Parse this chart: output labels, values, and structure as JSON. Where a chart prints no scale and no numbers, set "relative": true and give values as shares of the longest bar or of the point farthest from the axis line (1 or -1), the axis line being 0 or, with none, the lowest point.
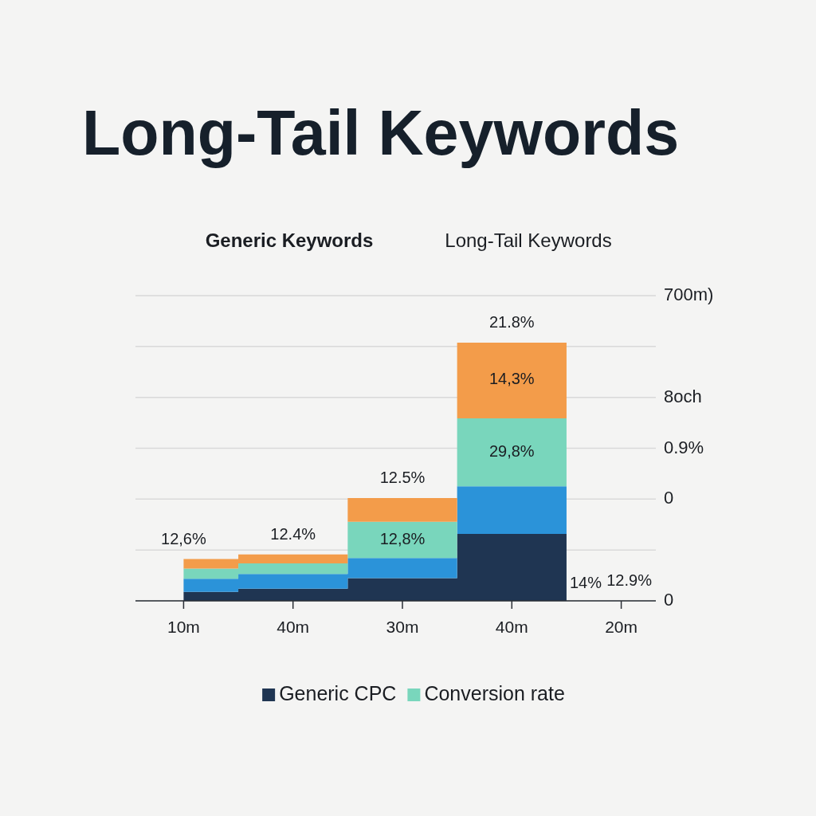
{
  "chart_data": {
    "type": "area",
    "stacked": true,
    "relative": true,
    "title": "Long-Tail Keywords",
    "categories": [
      "10m",
      "40m",
      "30m",
      "40m",
      "20m"
    ],
    "grid": "y",
    "legend": "bottom",
    "series": [
      {
        "name": "Generic CPC",
        "color": "#1f3552",
        "values": [
          0.035,
          0.047,
          0.088,
          0.259,
          0
        ]
      },
      {
        "color": "#2b93d9",
        "values": [
          0.051,
          0.057,
          0.078,
          0.185,
          0
        ]
      },
      {
        "name": "Conversion rate",
        "color": "#79d6bc",
        "values": [
          0.039,
          0.041,
          0.14,
          0.263,
          0
        ]
      },
      {
        "color": "#f39c4a",
        "values": [
          0.037,
          0.035,
          0.092,
          0.293,
          0
        ]
      }
    ],
    "annotations": [
      "Generic Keywords",
      "Long-Tail Keywords",
      "700m)",
      "8och",
      "0.9%",
      "0",
      "0",
      "12,6%",
      "12.4%",
      "12.5%",
      "12,8%",
      "21.8%",
      "14,3%",
      "29,8%",
      "14%",
      "12.9%"
    ]
  }
}
